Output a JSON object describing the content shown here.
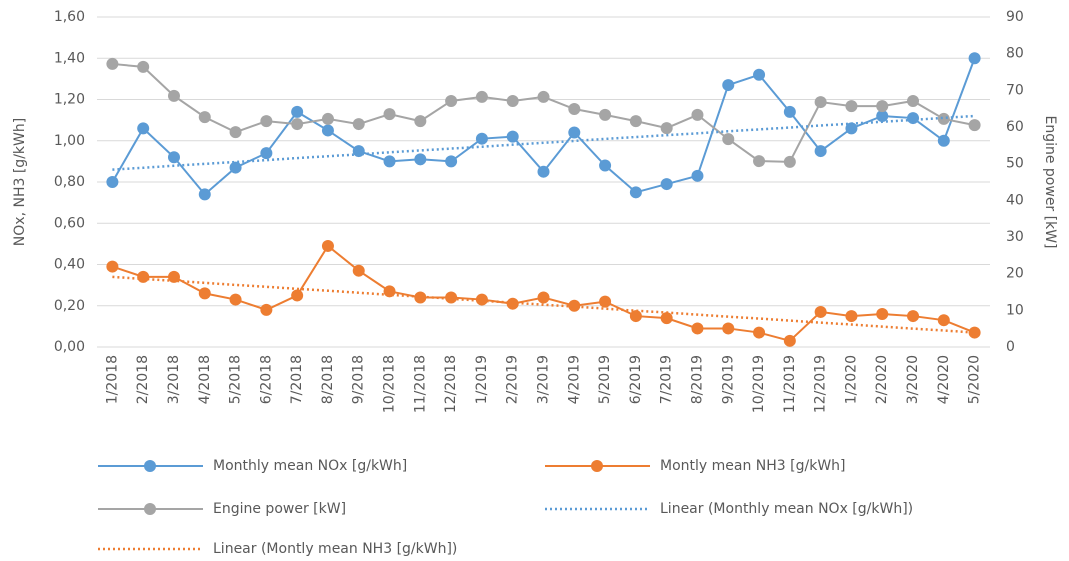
{
  "chart_data": {
    "type": "line",
    "y_label": "NOx, NH3 [g/kWh]",
    "y2_label": "Engine power [kW]",
    "categories": [
      "1/2018",
      "2/2018",
      "3/2018",
      "4/2018",
      "5/2018",
      "6/2018",
      "7/2018",
      "8/2018",
      "9/2018",
      "10/2018",
      "11/2018",
      "12/2018",
      "1/2019",
      "2/2019",
      "3/2019",
      "4/2019",
      "5/2019",
      "6/2019",
      "7/2019",
      "8/2019",
      "9/2019",
      "10/2019",
      "11/2019",
      "12/2019",
      "1/2020",
      "2/2020",
      "3/2020",
      "4/2020",
      "5/2020"
    ],
    "series": [
      {
        "name": "Monthly mean NOx [g/kWh]",
        "color": "#5b9bd5",
        "values": [
          0.8,
          1.06,
          0.92,
          0.74,
          0.87,
          0.94,
          1.14,
          1.05,
          0.95,
          0.9,
          0.91,
          0.9,
          1.01,
          1.02,
          0.85,
          1.04,
          0.88,
          0.75,
          0.79,
          0.83,
          1.27,
          1.32,
          1.14,
          0.95,
          1.06,
          1.12,
          1.11,
          1.0,
          1.4
        ]
      },
      {
        "name": "Montly mean NH3 [g/kWh]",
        "color": "#ed7d31",
        "values": [
          0.39,
          0.34,
          0.34,
          0.26,
          0.23,
          0.18,
          0.25,
          0.49,
          0.37,
          0.27,
          0.24,
          0.24,
          0.23,
          0.21,
          0.24,
          0.2,
          0.22,
          0.15,
          0.14,
          0.09,
          0.09,
          0.07,
          0.03,
          0.17,
          0.15,
          0.16,
          0.15,
          0.13,
          0.07
        ]
      },
      {
        "name": "Engine power [kW]",
        "color": "#a5a5a5",
        "axis": "y2",
        "values": [
          77.2,
          76.4,
          68.5,
          62.7,
          58.6,
          61.6,
          60.8,
          62.2,
          60.8,
          63.5,
          61.6,
          67.1,
          68.2,
          67.1,
          68.2,
          64.9,
          63.3,
          61.6,
          59.7,
          63.3,
          56.7,
          50.7,
          50.5,
          66.8,
          65.7,
          65.7,
          67.1,
          62.2,
          60.5
        ]
      },
      {
        "name": "Linear (Monthly mean NOx [g/kWh])",
        "color": "#5b9bd5",
        "dashed": true,
        "values": [
          0.86,
          0.869,
          0.879,
          0.888,
          0.897,
          0.906,
          0.916,
          0.925,
          0.934,
          0.944,
          0.953,
          0.962,
          0.971,
          0.981,
          0.99,
          0.999,
          1.009,
          1.018,
          1.027,
          1.036,
          1.046,
          1.055,
          1.064,
          1.074,
          1.083,
          1.092,
          1.101,
          1.111,
          1.12
        ]
      },
      {
        "name": "Linear (Montly mean NH3 [g/kWh])",
        "color": "#ed7d31",
        "dashed": true,
        "values": [
          0.34,
          0.33,
          0.321,
          0.311,
          0.301,
          0.292,
          0.282,
          0.273,
          0.263,
          0.253,
          0.244,
          0.234,
          0.224,
          0.215,
          0.205,
          0.196,
          0.186,
          0.176,
          0.167,
          0.157,
          0.147,
          0.138,
          0.128,
          0.118,
          0.109,
          0.099,
          0.089,
          0.08,
          0.07
        ]
      }
    ],
    "ylim": [
      0,
      1.6
    ],
    "yticks": [
      {
        "value": 0,
        "label": "0,00"
      },
      {
        "value": 0.2,
        "label": "0,20"
      },
      {
        "value": 0.4,
        "label": "0,40"
      },
      {
        "value": 0.6,
        "label": "0,60"
      },
      {
        "value": 0.8,
        "label": "0,80"
      },
      {
        "value": 1.0,
        "label": "1,00"
      },
      {
        "value": 1.2,
        "label": "1,20"
      },
      {
        "value": 1.4,
        "label": "1,40"
      },
      {
        "value": 1.6,
        "label": "1,60"
      }
    ],
    "y2lim": [
      0,
      90
    ],
    "y2ticks": [
      0,
      10,
      20,
      30,
      40,
      50,
      60,
      70,
      80,
      90
    ],
    "grid": true
  }
}
